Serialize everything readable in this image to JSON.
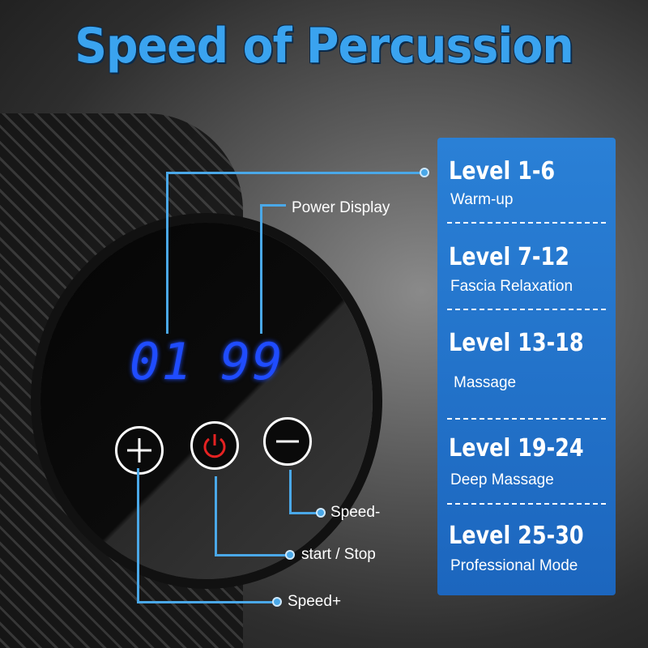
{
  "title": "Speed of Percussion",
  "display": {
    "left_digits": "01",
    "right_digits": "99",
    "digit_color": "#1f4cff"
  },
  "buttons": [
    {
      "icon": "plus-icon"
    },
    {
      "icon": "power-icon",
      "color": "#e52222"
    },
    {
      "icon": "minus-icon"
    }
  ],
  "callouts": {
    "power_display": "Power Display",
    "speed_minus": "Speed-",
    "start_stop": "start / Stop",
    "speed_plus": "Speed+"
  },
  "levels": [
    {
      "level": "Level 1-6",
      "mode": "Warm-up"
    },
    {
      "level": "Level 7-12",
      "mode": "Fascia Relaxation"
    },
    {
      "level": "Level 13-18",
      "mode": "Massage"
    },
    {
      "level": "Level 19-24",
      "mode": "Deep Massage"
    },
    {
      "level": "Level 25-30",
      "mode": "Professional Mode"
    }
  ],
  "colors": {
    "accent": "#3aa3ef",
    "panel": "#2a80d6",
    "callout_line": "#4aa8e8"
  }
}
